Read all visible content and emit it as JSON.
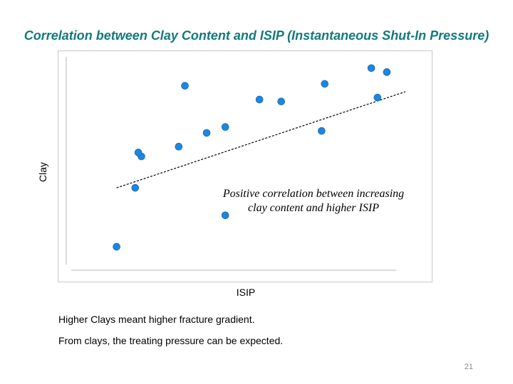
{
  "slide": {
    "title": "Correlation between Clay Content and ISIP (Instantaneous Shut-In Pressure)",
    "body_lines": [
      "Higher Clays meant higher fracture gradient.",
      "From clays, the treating pressure can be expected."
    ],
    "page_number": "21"
  },
  "chart_data": {
    "type": "scatter",
    "title": "",
    "xlabel": "ISIP",
    "ylabel": "Clay",
    "annotation": [
      "Positive correlation between increasing",
      "clay content and higher ISIP"
    ],
    "xlim": [
      0,
      100
    ],
    "ylim": [
      0,
      100
    ],
    "grid": false,
    "legend": "none",
    "series": [
      {
        "x": [
          10,
          16,
          18,
          17,
          30,
          32,
          39,
          45,
          45,
          56,
          63,
          76,
          77,
          92,
          94,
          97
        ],
        "y": [
          4,
          34,
          50,
          52,
          55,
          86,
          62,
          20,
          65,
          79,
          78,
          63,
          87,
          95,
          80,
          93
        ]
      }
    ],
    "trendline": {
      "x": [
        10,
        103
      ],
      "y": [
        34,
        83
      ]
    },
    "colors": {
      "points": "#1f85de",
      "point_edge": "#0d5fa8",
      "trendline": "#000000",
      "title": "#127a7c"
    }
  }
}
